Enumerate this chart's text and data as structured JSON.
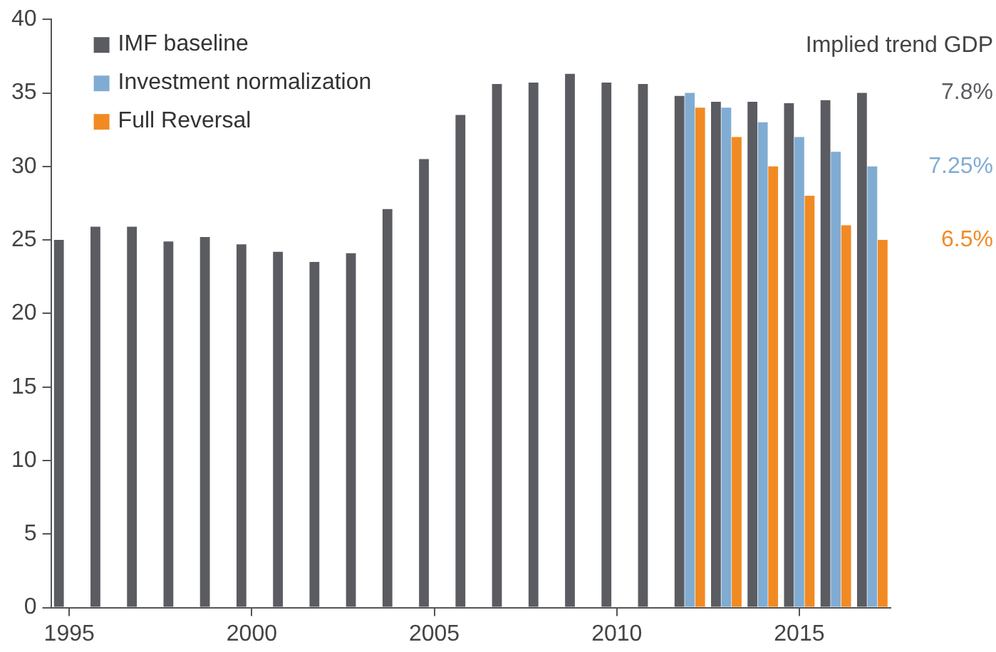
{
  "chart_data": {
    "type": "bar",
    "categories": [
      "1995",
      null,
      null,
      null,
      null,
      "2000",
      null,
      null,
      null,
      null,
      "2005",
      null,
      null,
      null,
      null,
      "2010",
      null,
      null,
      null,
      null,
      "2015",
      null,
      null
    ],
    "series": [
      {
        "name": "IMF baseline",
        "color": "#5b5c61",
        "values": [
          25.0,
          25.9,
          25.9,
          24.9,
          25.2,
          24.7,
          24.2,
          23.5,
          24.1,
          27.1,
          30.5,
          33.5,
          35.6,
          35.7,
          36.3,
          35.7,
          35.6,
          34.8,
          34.4,
          34.4,
          34.3,
          34.5,
          35.0
        ]
      },
      {
        "name": "Investment normalization",
        "color": "#80acd3",
        "values": [
          null,
          null,
          null,
          null,
          null,
          null,
          null,
          null,
          null,
          null,
          null,
          null,
          null,
          null,
          null,
          null,
          null,
          35.0,
          34.0,
          33.0,
          32.0,
          31.0,
          30.0
        ]
      },
      {
        "name": "Full Reversal",
        "color": "#f28a23",
        "values": [
          null,
          null,
          null,
          null,
          null,
          null,
          null,
          null,
          null,
          null,
          null,
          null,
          null,
          null,
          null,
          null,
          null,
          34.0,
          32.0,
          30.0,
          28.0,
          26.0,
          25.0
        ]
      }
    ],
    "ylim": [
      0,
      40
    ],
    "yticks": [
      0,
      5,
      10,
      15,
      20,
      25,
      30,
      35,
      40
    ],
    "grid": false,
    "legend": "top left",
    "annotations": [
      "Implied trend GDP",
      "7.8%",
      "7.25%",
      "6.5%"
    ]
  }
}
